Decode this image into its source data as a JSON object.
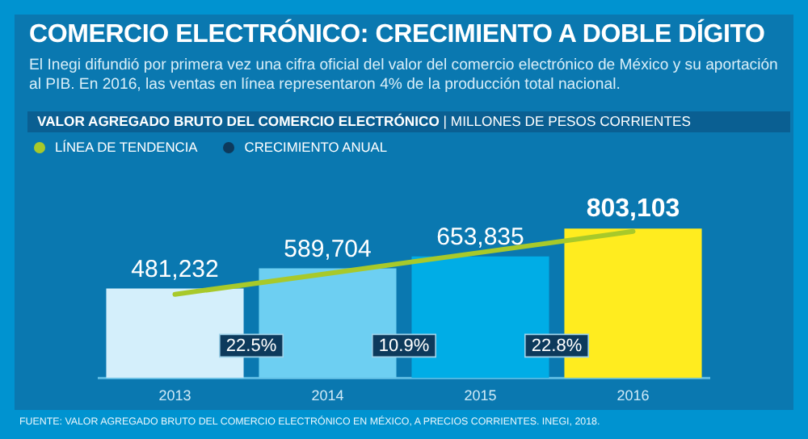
{
  "chart_data": {
    "type": "bar",
    "title": "COMERCIO ELECTRÓNICO: CRECIMIENTO A DOBLE DÍGITO",
    "subtitle": "El Inegi difundió por primera vez una cifra oficial del valor del comercio electrónico de México y su aportación al PIB. En 2016, las ventas en línea representaron 4% de la producción total nacional.",
    "categories": [
      "2013",
      "2014",
      "2015",
      "2016"
    ],
    "series": [
      {
        "colors": [
          "#d4effb",
          "#6dcff2",
          "#00ade6",
          "#ffec1f"
        ],
        "values": [
          481232,
          589704,
          653835,
          803103
        ],
        "value_labels": [
          "481,232",
          "589,704",
          "653,835",
          "803,103"
        ]
      },
      {
        "type": "line",
        "name": "LÍNEA DE TENDENCIA",
        "color": "#a8c92a",
        "values": [
          450000,
          562000,
          675000,
          788000
        ]
      }
    ],
    "legend": "top left",
    "grid": false,
    "tick_labels": "x",
    "annotations": [
      "VALOR AGREGADO BRUTO DEL COMERCIO ELECTRÓNICO | MILLONES DE PESOS CORRIENTES",
      "CRECIMIENTO ANUAL",
      "22.5%",
      "10.9%",
      "22.8%",
      "FUENTE: VALOR AGREGADO BRUTO DEL COMERCIO ELECTRÓNICO EN MÉXICO, A PRECIOS CORRIENTES. INEGI, 2018."
    ]
  }
}
